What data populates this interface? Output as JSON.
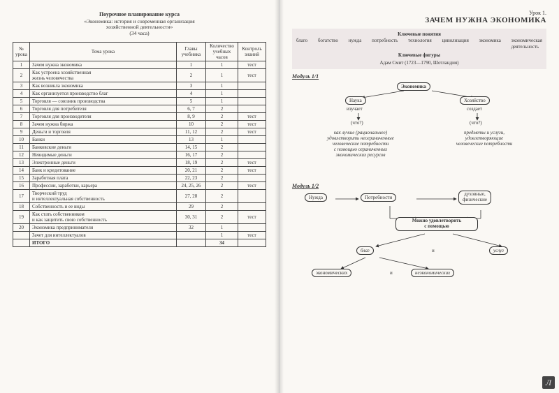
{
  "left": {
    "title": "Поурочное планирование курса",
    "subtitle1": "«Экономика: история и современная организация",
    "subtitle2": "хозяйственной деятельности»",
    "subtitle3": "(34 часа)",
    "cols": {
      "c1": "№\nурока",
      "c2": "Тема урока",
      "c3": "Главы\nучебника",
      "c4": "Количество\nучебных\nчасов",
      "c5": "Контроль\nзнаний"
    },
    "rows": [
      {
        "n": "1",
        "t": "Зачем нужна экономика",
        "g": "1",
        "h": "1",
        "k": "тест"
      },
      {
        "n": "2",
        "t": "Как устроена хозяйственная\nжизнь человечества",
        "g": "2",
        "h": "1",
        "k": "тест"
      },
      {
        "n": "3",
        "t": "Как возникла экономика",
        "g": "3",
        "h": "1",
        "k": ""
      },
      {
        "n": "4",
        "t": "Как организуется производство благ",
        "g": "4",
        "h": "1",
        "k": ""
      },
      {
        "n": "5",
        "t": "Торговля — союзник производства",
        "g": "5",
        "h": "1",
        "k": ""
      },
      {
        "n": "6",
        "t": "Торговля для потребителя",
        "g": "6, 7",
        "h": "2",
        "k": ""
      },
      {
        "n": "7",
        "t": "Торговля для производителя",
        "g": "8, 9",
        "h": "2",
        "k": "тест"
      },
      {
        "n": "8",
        "t": "Зачем нужна биржа",
        "g": "10",
        "h": "2",
        "k": "тест"
      },
      {
        "n": "9",
        "t": "Деньги и торговля",
        "g": "11, 12",
        "h": "2",
        "k": "тест"
      },
      {
        "n": "10",
        "t": "Банки",
        "g": "13",
        "h": "1",
        "k": ""
      },
      {
        "n": "11",
        "t": "Банковские деньги",
        "g": "14, 15",
        "h": "2",
        "k": ""
      },
      {
        "n": "12",
        "t": "Невидимые деньги",
        "g": "16, 17",
        "h": "2",
        "k": ""
      },
      {
        "n": "13",
        "t": "Электронные деньги",
        "g": "18, 19",
        "h": "2",
        "k": "тест"
      },
      {
        "n": "14",
        "t": "Банк и кредитование",
        "g": "20, 21",
        "h": "2",
        "k": "тест"
      },
      {
        "n": "15",
        "t": "Заработная плата",
        "g": "22, 23",
        "h": "2",
        "k": ""
      },
      {
        "n": "16",
        "t": "Профессии, заработки, карьера",
        "g": "24, 25, 26",
        "h": "2",
        "k": "тест"
      },
      {
        "n": "17",
        "t": "Творческий труд\nи интеллектуальная собственность",
        "g": "27, 28",
        "h": "2",
        "k": ""
      },
      {
        "n": "18",
        "t": "Собственность и ее виды",
        "g": "29",
        "h": "2",
        "k": ""
      },
      {
        "n": "19",
        "t": "Как стать собственником\nи как защитить свою собственность",
        "g": "30, 31",
        "h": "2",
        "k": "тест"
      },
      {
        "n": "20",
        "t": "Экономика предпринимателя",
        "g": "32",
        "h": "1",
        "k": ""
      },
      {
        "n": "",
        "t": "Зачет для интеллектуалов",
        "g": "",
        "h": "1",
        "k": "тест"
      }
    ],
    "total": {
      "label": "ИТОГО",
      "hours": "34"
    }
  },
  "right": {
    "lesson_no": "Урок 1.",
    "lesson_title": "ЗАЧЕМ НУЖНА ЭКОНОМИКА",
    "key_concepts_hdr": "Ключевые понятия",
    "terms": [
      "благо",
      "богатство",
      "нужда",
      "потребность",
      "технология",
      "цивилизация",
      "экономика",
      "экономическая\nдеятельность"
    ],
    "key_figures_hdr": "Ключевые фигуры",
    "key_figures": "Адам Смит (1723—1790, Шотландия)",
    "mod1_label": "Модуль 1/1",
    "d1": {
      "root": "Экономика",
      "left_box": "Наука",
      "left_sub": "изучает",
      "left_q": "(что?)",
      "right_box": "Хозяйство",
      "right_sub": "создает",
      "right_q": "(что?)",
      "left_ans": "как лучше (рациональнее)\nудовлетворить неограниченные\nчеловеческие потребности\nс помощью ограниченных\nэкономических ресурсов",
      "right_ans": "предметы и услуги,\nудовлетворяющие\nчеловеческие потребности"
    },
    "mod2_label": "Модуль 1/2",
    "d2": {
      "b1": "Нужда",
      "b2": "Потребности",
      "b3": "духовные,\nфизические",
      "b4": "Можно удовлетворить\nс помощью",
      "b5": "благ",
      "and1": "и",
      "b6": "услуг",
      "b7": "экономических",
      "and2": "и",
      "b8": "неэкономических"
    }
  },
  "style": {
    "page_bg": "#faf8f4",
    "border": "#444444",
    "keybox_bg": "#eee8e8",
    "text": "#333333"
  },
  "badge": "Л"
}
